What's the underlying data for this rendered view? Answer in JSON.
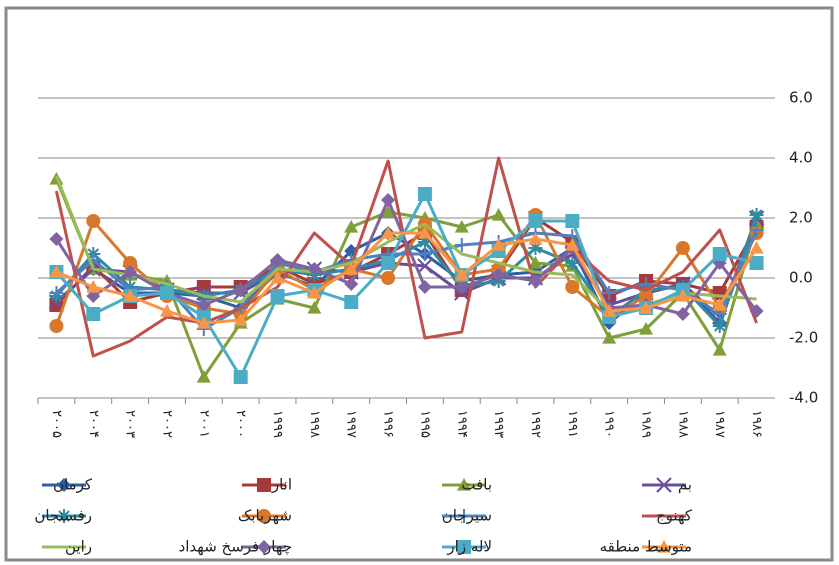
{
  "chart_data": {
    "type": "line",
    "categories": [
      "۲۰۰۵",
      "۲۰۰۴",
      "۲۰۰۳",
      "۲۰۰۲",
      "۲۰۰۱",
      "۲۰۰۰",
      "۱۹۹۹",
      "۱۹۹۸",
      "۱۹۹۷",
      "۱۹۹۶",
      "۱۹۹۵",
      "۱۹۹۴",
      "۱۹۹۳",
      "۱۹۹۲",
      "۱۹۹۱",
      "۱۹۹۰",
      "۱۹۸۹",
      "۱۹۸۸",
      "۱۹۸۷",
      "۱۹۸۶"
    ],
    "ylim": [
      -4,
      6
    ],
    "yticks": [
      {
        "value": 6,
        "label": "6.0"
      },
      {
        "value": 4,
        "label": "4.0"
      },
      {
        "value": 2,
        "label": "2.0"
      },
      {
        "value": 0,
        "label": "0.0"
      },
      {
        "value": -2,
        "label": "-2.0"
      },
      {
        "value": -4,
        "label": "-4.0"
      }
    ],
    "grid": true,
    "series": [
      {
        "name": "کرمان",
        "color": "#2e5fa5",
        "marker": "diamond",
        "values": [
          -0.8,
          0.3,
          -0.5,
          -0.5,
          -0.6,
          -1.0,
          0.2,
          -0.3,
          0.9,
          1.5,
          0.8,
          -0.1,
          0.1,
          0.2,
          1.0,
          -1.5,
          -0.5,
          -0.2,
          -1.5,
          1.8
        ]
      },
      {
        "name": "انار",
        "color": "#a8393a",
        "marker": "square",
        "values": [
          -0.9,
          0.4,
          -0.8,
          -0.5,
          -0.3,
          -0.3,
          0.4,
          -0.2,
          0.2,
          0.8,
          1.5,
          -0.4,
          0.2,
          2.0,
          1.2,
          -0.6,
          -0.1,
          -0.2,
          -0.5,
          1.7
        ]
      },
      {
        "name": "بافت",
        "color": "#7f9f3a",
        "marker": "triangle",
        "values": [
          3.3,
          0.3,
          0.1,
          -0.1,
          -3.3,
          -1.5,
          -0.7,
          -1.0,
          1.7,
          2.2,
          2.0,
          1.7,
          2.1,
          0.5,
          0.4,
          -2.0,
          -1.7,
          -0.5,
          -2.4,
          1.8
        ]
      },
      {
        "name": "بم",
        "color": "#6a4c9c",
        "marker": "x",
        "values": [
          -0.8,
          0.3,
          0.2,
          -0.4,
          -0.5,
          -0.5,
          0.2,
          0.3,
          0.2,
          0.5,
          0.4,
          -0.5,
          0.0,
          0.0,
          0.8,
          -0.9,
          -0.5,
          -0.2,
          -1.3,
          2.0
        ]
      },
      {
        "name": "رفسنجان",
        "color": "#2f8aa3",
        "marker": "star",
        "values": [
          -0.6,
          0.8,
          -0.3,
          -0.4,
          -0.6,
          -0.4,
          0.3,
          0.1,
          0.3,
          0.6,
          1.2,
          -0.3,
          -0.1,
          1.0,
          0.5,
          -1.3,
          -0.4,
          -0.3,
          -1.6,
          2.1
        ]
      },
      {
        "name": "شهربابک",
        "color": "#d9782b",
        "marker": "circle",
        "values": [
          -1.6,
          1.9,
          0.5,
          -0.6,
          -1.0,
          -1.2,
          0.3,
          -0.4,
          0.3,
          0.0,
          1.8,
          0.1,
          0.3,
          2.1,
          -0.3,
          -1.3,
          -0.6,
          1.0,
          -1.0,
          1.5
        ]
      },
      {
        "name": "سیرجان",
        "color": "#4f81bd",
        "marker": "plus",
        "values": [
          -0.5,
          0.6,
          -0.4,
          -0.3,
          -1.7,
          -1.0,
          0.5,
          0.2,
          0.6,
          0.8,
          0.8,
          1.1,
          1.2,
          1.5,
          1.4,
          -0.5,
          -0.2,
          -0.4,
          -1.2,
          1.6
        ]
      },
      {
        "name": "کهنوج",
        "color": "#c0504d",
        "marker": "none",
        "values": [
          2.9,
          -2.6,
          -2.1,
          -1.3,
          -1.5,
          -1.0,
          -0.3,
          1.5,
          0.4,
          3.9,
          -2.0,
          -1.8,
          4.0,
          -0.3,
          1.0,
          -0.1,
          -0.4,
          0.2,
          1.6,
          -1.5
        ]
      },
      {
        "name": "راین",
        "color": "#9bbb59",
        "marker": "none",
        "values": [
          3.4,
          0.3,
          0.1,
          -0.2,
          -0.6,
          -0.8,
          0.3,
          0.2,
          0.5,
          1.2,
          1.8,
          0.8,
          0.5,
          0.2,
          0.1,
          -1.1,
          -0.9,
          -0.5,
          -0.6,
          -0.7
        ]
      },
      {
        "name": "چهار فرسخ شهداد",
        "color": "#8064a2",
        "marker": "diamond",
        "values": [
          1.3,
          -0.6,
          0.2,
          -0.5,
          -0.9,
          -0.4,
          0.6,
          0.3,
          -0.2,
          2.6,
          -0.3,
          -0.3,
          0.1,
          -0.1,
          1.0,
          -1.0,
          -0.9,
          -1.2,
          0.5,
          -1.1
        ]
      },
      {
        "name": "لاله زار",
        "color": "#4bacc6",
        "marker": "square",
        "values": [
          0.2,
          -1.2,
          -0.6,
          -0.5,
          -1.3,
          -3.3,
          -0.6,
          -0.4,
          -0.8,
          0.5,
          2.8,
          0.1,
          0.9,
          1.9,
          1.9,
          -1.3,
          -1.0,
          -0.4,
          0.8,
          0.5
        ]
      },
      {
        "name": "متوسط منطقه",
        "color": "#f79646",
        "marker": "triangle",
        "values": [
          0.2,
          -0.3,
          -0.6,
          -1.1,
          -1.5,
          -1.4,
          0.0,
          -0.5,
          0.3,
          1.5,
          1.5,
          0.1,
          1.1,
          1.3,
          1.1,
          -1.1,
          -1.0,
          -0.6,
          -0.9,
          1.0
        ]
      }
    ]
  }
}
